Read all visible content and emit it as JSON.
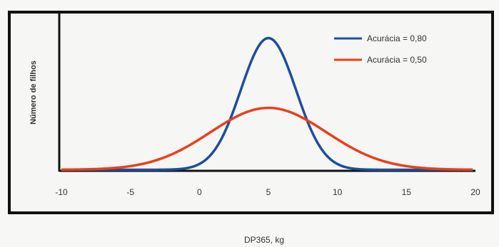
{
  "chart_data": {
    "type": "line",
    "title": "",
    "xlabel": "DP365, kg",
    "ylabel": "Número de filhos",
    "xlim": [
      -10,
      20
    ],
    "xticks": [
      "-10",
      "-5",
      "0",
      "5",
      "10",
      "15",
      "20"
    ],
    "grid": false,
    "legend_position": "top-right",
    "series": [
      {
        "name": "Acurácia = 0,80",
        "color": "#1f4e9c",
        "mean": 5,
        "sd": 2.0,
        "peak": 1.0
      },
      {
        "name": "Acurácia = 0,50",
        "color": "#e8401c",
        "mean": 5,
        "sd": 4.2,
        "peak": 0.47
      }
    ]
  }
}
